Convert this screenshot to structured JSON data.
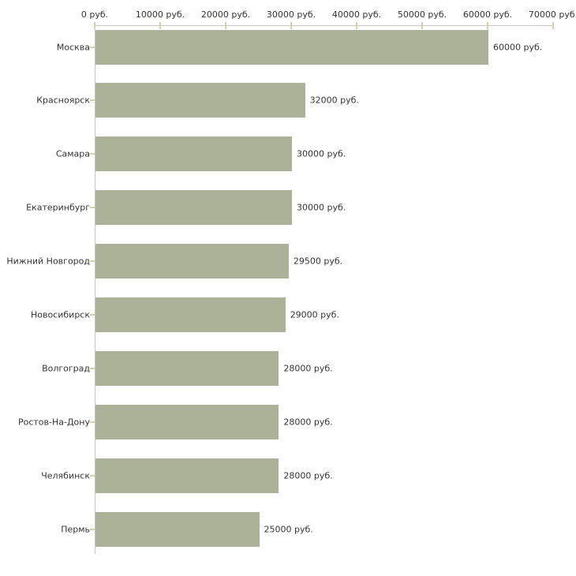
{
  "chart_data": {
    "type": "bar",
    "orientation": "horizontal",
    "title": "",
    "xlabel": "",
    "ylabel": "",
    "grid": false,
    "categories": [
      "Москва",
      "Красноярск",
      "Самара",
      "Екатеринбург",
      "Нижний Новгород",
      "Новосибирск",
      "Волгоград",
      "Ростов-На-Дону",
      "Челябинск",
      "Пермь"
    ],
    "values": [
      60000,
      32000,
      30000,
      30000,
      29500,
      29000,
      28000,
      28000,
      28000,
      25000
    ],
    "value_labels": [
      "60000 руб.",
      "32000 руб.",
      "30000 руб.",
      "30000 руб.",
      "29500 руб.",
      "29000 руб.",
      "28000 руб.",
      "28000 руб.",
      "28000 руб.",
      "25000 руб."
    ],
    "unit": "руб.",
    "x_axis": {
      "position": "top",
      "min": 0,
      "max": 70000,
      "ticks": [
        0,
        10000,
        20000,
        30000,
        40000,
        50000,
        60000,
        70000
      ],
      "tick_labels": [
        "0 руб.",
        "10000 руб.",
        "20000 руб.",
        "30000 руб.",
        "40000 руб.",
        "50000 руб.",
        "60000 руб.",
        "70000 руб."
      ]
    },
    "colors": {
      "bar": "#acb298",
      "axis_line": "#c6c6c6",
      "tick_mark": "#d6d1a6",
      "text": "#333333",
      "background": "#ffffff"
    }
  }
}
